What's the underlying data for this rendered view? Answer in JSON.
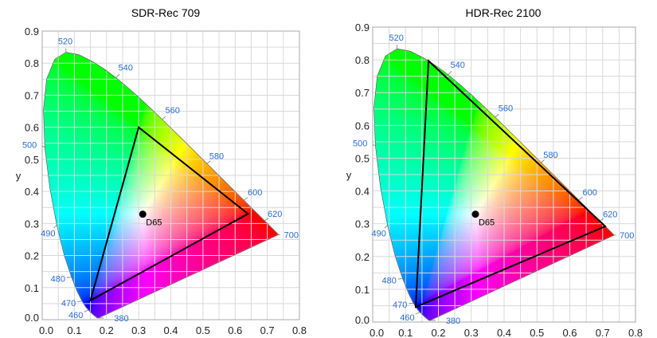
{
  "chart_data": [
    {
      "type": "chromaticity-diagram",
      "title": "SDR-Rec 709",
      "xlabel": "",
      "ylabel": "y",
      "xlim": [
        0,
        0.8
      ],
      "ylim": [
        0,
        0.9
      ],
      "x_ticks": [
        "0.0",
        "0.1",
        "0.2",
        "0.3",
        "0.4",
        "0.5",
        "0.6",
        "0.7",
        "0.8"
      ],
      "y_ticks": [
        "0.0",
        "0.1",
        "0.2",
        "0.3",
        "0.4",
        "0.5",
        "0.6",
        "0.7",
        "0.8",
        "0.9"
      ],
      "grid": true,
      "gamut_triangle": [
        [
          0.64,
          0.33
        ],
        [
          0.3,
          0.6
        ],
        [
          0.15,
          0.06
        ]
      ],
      "white_point": {
        "label": "D65",
        "x": 0.3127,
        "y": 0.329
      }
    },
    {
      "type": "chromaticity-diagram",
      "title": "HDR-Rec 2100",
      "xlabel": "",
      "ylabel": "y",
      "xlim": [
        0,
        0.8
      ],
      "ylim": [
        0,
        0.9
      ],
      "x_ticks": [
        "0.0",
        "0.1",
        "0.2",
        "0.3",
        "0.4",
        "0.5",
        "0.6",
        "0.7",
        "0.8"
      ],
      "y_ticks": [
        "0.0",
        "0.1",
        "0.2",
        "0.3",
        "0.4",
        "0.5",
        "0.6",
        "0.7",
        "0.8",
        "0.9"
      ],
      "grid": true,
      "gamut_triangle": [
        [
          0.708,
          0.292
        ],
        [
          0.17,
          0.797
        ],
        [
          0.131,
          0.046
        ]
      ],
      "white_point": {
        "label": "D65",
        "x": 0.3127,
        "y": 0.329
      }
    }
  ],
  "spectral_locus": [
    [
      380,
      0.1741,
      0.005
    ],
    [
      420,
      0.1714,
      0.0051
    ],
    [
      440,
      0.1644,
      0.0109
    ],
    [
      450,
      0.1566,
      0.0177
    ],
    [
      460,
      0.144,
      0.0297
    ],
    [
      465,
      0.1355,
      0.0399
    ],
    [
      470,
      0.1241,
      0.0578
    ],
    [
      475,
      0.1096,
      0.0868
    ],
    [
      480,
      0.0913,
      0.1327
    ],
    [
      485,
      0.0687,
      0.2007
    ],
    [
      490,
      0.0454,
      0.295
    ],
    [
      495,
      0.0235,
      0.4127
    ],
    [
      500,
      0.0082,
      0.5384
    ],
    [
      505,
      0.0039,
      0.6548
    ],
    [
      510,
      0.0139,
      0.7502
    ],
    [
      515,
      0.0389,
      0.812
    ],
    [
      520,
      0.0743,
      0.8338
    ],
    [
      525,
      0.1142,
      0.8262
    ],
    [
      530,
      0.1547,
      0.8059
    ],
    [
      535,
      0.1929,
      0.7816
    ],
    [
      540,
      0.2296,
      0.7543
    ],
    [
      545,
      0.2658,
      0.7243
    ],
    [
      550,
      0.3016,
      0.6923
    ],
    [
      555,
      0.3373,
      0.6589
    ],
    [
      560,
      0.3731,
      0.6245
    ],
    [
      570,
      0.4441,
      0.5547
    ],
    [
      580,
      0.5125,
      0.4866
    ],
    [
      590,
      0.5752,
      0.4242
    ],
    [
      600,
      0.627,
      0.3725
    ],
    [
      610,
      0.6658,
      0.334
    ],
    [
      620,
      0.6915,
      0.3083
    ],
    [
      640,
      0.719,
      0.2809
    ],
    [
      700,
      0.7347,
      0.2653
    ]
  ],
  "wavelength_labels": [
    "380",
    "460",
    "470",
    "480",
    "490",
    "500",
    "520",
    "540",
    "560",
    "580",
    "600",
    "620",
    "700"
  ],
  "colors": {
    "wavelength_label": "#2a6ad0",
    "triangle": "#000000",
    "grid": "#d9d9d9",
    "frame": "#aaaaaa"
  }
}
